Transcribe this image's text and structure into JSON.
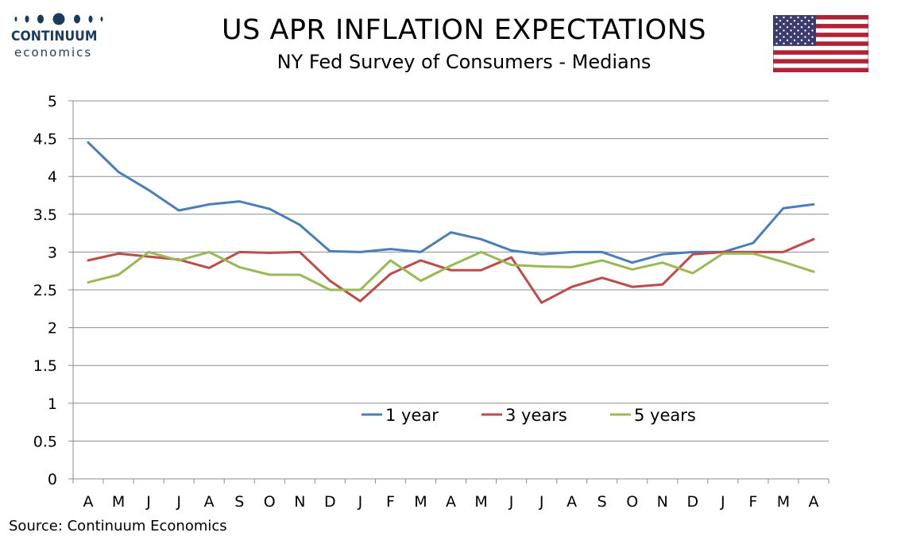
{
  "branding": {
    "name": "CONTINUUM",
    "sub": "economics",
    "color": "#1b3b5a"
  },
  "header": {
    "title": "US APR INFLATION EXPECTATIONS",
    "subtitle": "NY Fed Survey of Consumers - Medians"
  },
  "flag_icon": "us-flag-icon",
  "footer": {
    "source": "Source: Continuum Economics"
  },
  "chart_data": {
    "type": "line",
    "title": "US APR INFLATION EXPECTATIONS",
    "subtitle": "NY Fed Survey of Consumers - Medians",
    "categories": [
      "A",
      "M",
      "J",
      "J",
      "A",
      "S",
      "O",
      "N",
      "D",
      "J",
      "F",
      "M",
      "A",
      "M",
      "J",
      "J",
      "A",
      "S",
      "O",
      "N",
      "D",
      "J",
      "F",
      "M",
      "A"
    ],
    "ylim": [
      0,
      5
    ],
    "yticks": [
      0,
      0.5,
      1,
      1.5,
      2,
      2.5,
      3,
      3.5,
      4,
      4.5,
      5
    ],
    "ytick_labels": [
      "0",
      "0.5",
      "1",
      "1.5",
      "2",
      "2.5",
      "3",
      "3.5",
      "4",
      "4.5",
      "5"
    ],
    "grid": true,
    "legend_position": "lower-center",
    "series": [
      {
        "name": "1 year",
        "color": "#4a7ebb",
        "values": [
          4.45,
          4.06,
          3.82,
          3.55,
          3.63,
          3.67,
          3.57,
          3.36,
          3.01,
          3.0,
          3.04,
          3.0,
          3.26,
          3.17,
          3.02,
          2.97,
          3.0,
          3.0,
          2.86,
          2.97,
          3.0,
          3.0,
          3.12,
          3.58,
          3.63
        ]
      },
      {
        "name": "3 years",
        "color": "#be4b48",
        "values": [
          2.89,
          2.98,
          2.94,
          2.9,
          2.79,
          3.0,
          2.99,
          3.0,
          2.62,
          2.35,
          2.71,
          2.89,
          2.76,
          2.76,
          2.93,
          2.33,
          2.54,
          2.66,
          2.54,
          2.57,
          2.97,
          3.0,
          3.0,
          3.0,
          3.17
        ]
      },
      {
        "name": "5 years",
        "color": "#98b954",
        "values": [
          2.6,
          2.7,
          3.0,
          2.89,
          3.0,
          2.8,
          2.7,
          2.7,
          2.5,
          2.5,
          2.89,
          2.62,
          2.82,
          3.0,
          2.83,
          2.81,
          2.8,
          2.89,
          2.77,
          2.86,
          2.72,
          2.98,
          2.98,
          2.87,
          2.74
        ]
      }
    ]
  }
}
